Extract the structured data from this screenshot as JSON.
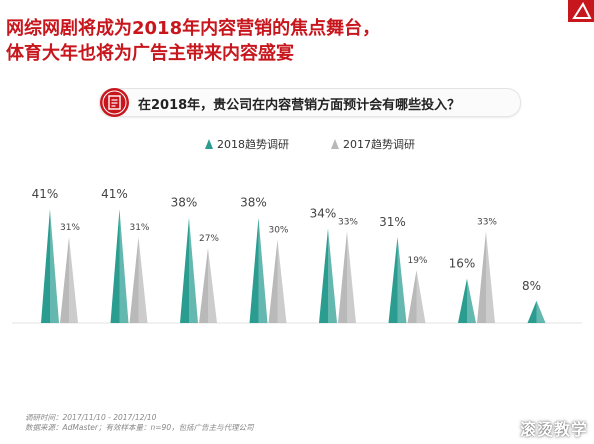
{
  "header": {
    "title_line1": "网综网剧将成为2018年内容营销的焦点舞台，",
    "title_line2": "体育大年也将为广告主带来内容盛宴"
  },
  "question": {
    "text": "在2018年，贵公司在内容营销方面预计会有哪些投入？",
    "icon": "document-icon"
  },
  "legend": {
    "items": [
      {
        "label": "2018趋势调研",
        "color": "#2a9d90"
      },
      {
        "label": "2017趋势调研",
        "color": "#b9b9b9"
      }
    ]
  },
  "chart_data": {
    "type": "bar",
    "categories": [
      "",
      "",
      "",
      "",
      "",
      "",
      "",
      ""
    ],
    "series": [
      {
        "name": "2018趋势调研",
        "values": [
          41,
          41,
          38,
          38,
          34,
          31,
          16,
          8
        ],
        "labels": [
          "41%",
          "41%",
          "38%",
          "38%",
          "34%",
          "31%",
          "16%",
          "8%"
        ],
        "color": "#2a9d90"
      },
      {
        "name": "2017趋势调研",
        "values": [
          31,
          31,
          27,
          30,
          33,
          19,
          33,
          null
        ],
        "labels": [
          "31%",
          "31%",
          "27%",
          "30%",
          "33%",
          "19%",
          "33%",
          ""
        ],
        "color": "#b9b9b9"
      }
    ],
    "ylim": [
      0,
      45
    ],
    "grid": false,
    "legend_position": "top-center"
  },
  "footnote": {
    "line1": "调研时间：2017/11/10 - 2017/12/10",
    "line2": "数据来源：AdMaster；有效样本量：n=90，包括广告主与代理公司"
  },
  "watermark": "滚烫教学"
}
